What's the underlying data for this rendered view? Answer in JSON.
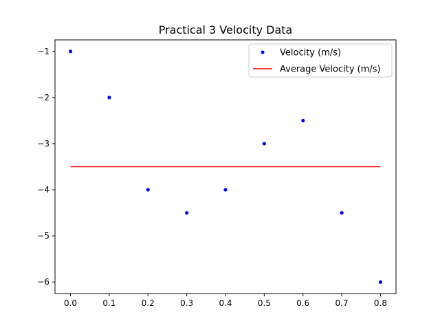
{
  "chart_data": {
    "type": "scatter",
    "title": "Practical 3 Velocity Data",
    "xlabel": "",
    "ylabel": "",
    "xlim": [
      -0.04,
      0.84
    ],
    "ylim": [
      -6.25,
      -0.75
    ],
    "x_ticks": [
      0.0,
      0.1,
      0.2,
      0.3,
      0.4,
      0.5,
      0.6,
      0.7,
      0.8
    ],
    "x_tick_labels": [
      "0.0",
      "0.1",
      "0.2",
      "0.3",
      "0.4",
      "0.5",
      "0.6",
      "0.7",
      "0.8"
    ],
    "y_ticks": [
      -1,
      -2,
      -3,
      -4,
      -5,
      -6
    ],
    "y_tick_labels": [
      "−1",
      "−2",
      "−3",
      "−4",
      "−5",
      "−6"
    ],
    "grid": false,
    "legend_position": "top-right",
    "series": [
      {
        "name": "Velocity (m/s)",
        "kind": "points",
        "color": "#0000ff",
        "x": [
          0.0,
          0.1,
          0.2,
          0.3,
          0.4,
          0.5,
          0.6,
          0.7,
          0.8
        ],
        "y": [
          -1,
          -2,
          -4,
          -4.5,
          -4,
          -3,
          -2.5,
          -4.5,
          -6
        ]
      },
      {
        "name": "Average Velocity (m/s)",
        "kind": "line",
        "color": "#ff0000",
        "x": [
          0.0,
          0.8
        ],
        "y": [
          -3.5,
          -3.5
        ]
      }
    ]
  }
}
